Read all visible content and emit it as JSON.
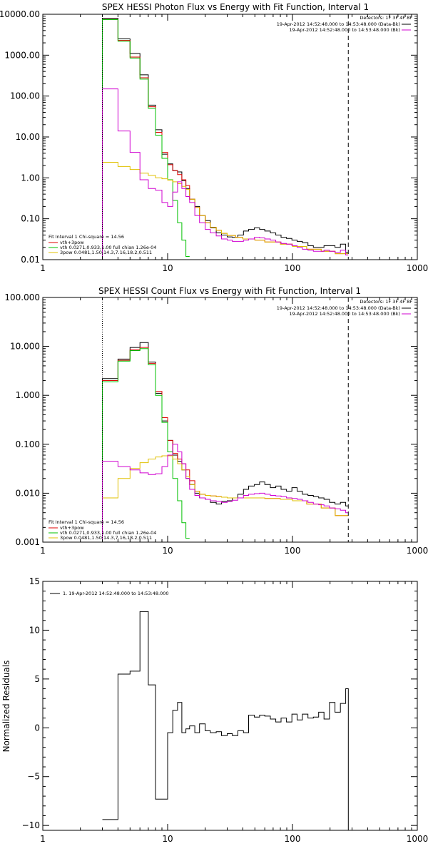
{
  "figure": {
    "background": "#ffffff",
    "axis_color": "#000000"
  },
  "chart_data": [
    {
      "type": "line",
      "title": "SPEX HESSI Photon Flux vs Energy with Fit Function, Interval 1",
      "xscale": "log",
      "yscale": "log",
      "xlim": [
        1,
        1000
      ],
      "ylim": [
        0.01,
        10000
      ],
      "xticks": [
        1,
        10,
        100,
        1000
      ],
      "xticklabels": [
        "1",
        "10",
        "100",
        "1000"
      ],
      "yticks": [
        0.01,
        0.1,
        1,
        10,
        100,
        1000,
        10000
      ],
      "yticklabels": [
        "0.01",
        "0.10",
        "1.00",
        "10.00",
        "100.00",
        "1000.00",
        "10000.00"
      ],
      "vlines": [
        {
          "x": 3.0,
          "style": "dotted",
          "color": "#000000"
        },
        {
          "x": 280,
          "style": "dashed",
          "color": "#000000"
        }
      ],
      "header_labels": [
        {
          "text": "Detectors: 1F 3F 4F 8F",
          "color": ""
        },
        {
          "text": "19-Apr-2012 14:52:48.000 to 14:53:48.000 (Data-Bk)",
          "color": "#000000"
        },
        {
          "text": "19-Apr-2012 14:52:48.000 to 14:53:48.000 (Bk)",
          "color": "#d000d0"
        }
      ],
      "legend_labels": [
        {
          "text": "Fit Interval  1    Chi-square = 14.56",
          "color": ""
        },
        {
          "text": "vth+3pow",
          "color": "#e00000"
        },
        {
          "text": "vth 0.0271,0.933,1.00  full chian 1.26e-04",
          "color": "#00c000"
        },
        {
          "text": "3pow 0.0481,1.50,14.3,7.16,18.2,0.511",
          "color": "#e0c000"
        }
      ],
      "series": [
        {
          "key": "data_bk",
          "color": "#000000",
          "edges": [
            3.0,
            4.0,
            5.0,
            6.0,
            7.0,
            8.0,
            9.0,
            10.0,
            11.0,
            12.0,
            13.0,
            14.0,
            15.0,
            16.5,
            18.0,
            20.0,
            22.0,
            24.5,
            27.0,
            30.0,
            33.0,
            36.5,
            40.5,
            44.5,
            49.5,
            54.5,
            60.0,
            66.5,
            73.5,
            81.0,
            89.5,
            99.0,
            109.0,
            120.0,
            133.0,
            147.0,
            162.0,
            179.0,
            198.0,
            219.0,
            242.0,
            267.0,
            280.0
          ],
          "values": [
            8000,
            2500,
            1100,
            330,
            60,
            15,
            3.8,
            2.2,
            1.5,
            1.4,
            0.85,
            0.55,
            0.3,
            0.2,
            0.12,
            0.09,
            0.06,
            0.045,
            0.04,
            0.036,
            0.035,
            0.04,
            0.05,
            0.055,
            0.06,
            0.055,
            0.05,
            0.045,
            0.04,
            0.035,
            0.033,
            0.03,
            0.028,
            0.026,
            0.022,
            0.02,
            0.02,
            0.022,
            0.022,
            0.02,
            0.024,
            0.015
          ]
        },
        {
          "key": "total_fit",
          "color": "#e00000",
          "edges": [
            3.0,
            4.0,
            5.0,
            6.0,
            7.0,
            8.0,
            9.0,
            10.0,
            11.0,
            12.0,
            13.0,
            14.0,
            15.0,
            16.5,
            18.0,
            20.0,
            22.0,
            24.5,
            27.0,
            30.0,
            35.0,
            40.0,
            50.0,
            60.0,
            80.0,
            100.0,
            130.0,
            170.0,
            220.0,
            280.0
          ],
          "values": [
            7500,
            2300,
            900,
            280,
            55,
            13,
            4.2,
            2.1,
            1.5,
            1.2,
            0.9,
            0.65,
            0.3,
            0.19,
            0.12,
            0.08,
            0.062,
            0.052,
            0.044,
            0.039,
            0.035,
            0.032,
            0.03,
            0.027,
            0.024,
            0.021,
            0.018,
            0.016,
            0.014
          ]
        },
        {
          "key": "vth",
          "color": "#00c000",
          "edges": [
            3.0,
            4.0,
            5.0,
            6.0,
            7.0,
            8.0,
            9.0,
            10.0,
            11.0,
            12.0,
            13.0,
            14.0,
            15.0
          ],
          "values": [
            7400,
            2200,
            850,
            260,
            50,
            11,
            3.0,
            0.9,
            0.28,
            0.08,
            0.03,
            0.012
          ]
        },
        {
          "key": "pow3",
          "color": "#e0c000",
          "edges": [
            3.0,
            4.0,
            5.0,
            6.0,
            7.0,
            8.0,
            9.0,
            10.0,
            11.0,
            12.0,
            13.0,
            14.0,
            15.0,
            16.5,
            18.0,
            20.0,
            22.0,
            24.5,
            27.0,
            30.0,
            35.0,
            40.0,
            50.0,
            60.0,
            80.0,
            100.0,
            130.0,
            170.0,
            220.0,
            280.0
          ],
          "values": [
            2.4,
            1.9,
            1.6,
            1.3,
            1.15,
            1.0,
            0.95,
            0.88,
            0.8,
            0.72,
            0.62,
            0.52,
            0.3,
            0.19,
            0.12,
            0.08,
            0.062,
            0.052,
            0.044,
            0.039,
            0.035,
            0.032,
            0.03,
            0.027,
            0.024,
            0.021,
            0.018,
            0.016,
            0.014
          ]
        },
        {
          "key": "bk",
          "color": "#d000d0",
          "edges": [
            3.0,
            4.0,
            5.0,
            6.0,
            7.0,
            8.0,
            9.0,
            10.0,
            11.0,
            12.0,
            13.0,
            14.0,
            15.0,
            16.5,
            18.0,
            20.0,
            22.0,
            24.5,
            27.0,
            30.0,
            33.0,
            36.5,
            40.5,
            44.5,
            49.5,
            54.5,
            60.0,
            66.5,
            73.5,
            81.0,
            89.5,
            99.0,
            109.0,
            120.0,
            133.0,
            147.0,
            162.0,
            179.0,
            198.0,
            219.0,
            242.0,
            267.0,
            280.0
          ],
          "values": [
            150,
            14,
            4.2,
            0.9,
            0.55,
            0.5,
            0.25,
            0.2,
            0.45,
            0.8,
            0.55,
            0.35,
            0.25,
            0.12,
            0.08,
            0.055,
            0.045,
            0.038,
            0.032,
            0.03,
            0.028,
            0.028,
            0.03,
            0.032,
            0.035,
            0.034,
            0.032,
            0.03,
            0.027,
            0.025,
            0.024,
            0.022,
            0.02,
            0.018,
            0.017,
            0.016,
            0.016,
            0.017,
            0.016,
            0.015,
            0.017,
            0.013
          ]
        }
      ]
    },
    {
      "type": "line",
      "title": "SPEX HESSI Count Flux vs Energy with Fit Function, Interval 1",
      "xscale": "log",
      "yscale": "log",
      "xlim": [
        1,
        1000
      ],
      "ylim": [
        0.001,
        100
      ],
      "xticks": [
        1,
        10,
        100,
        1000
      ],
      "xticklabels": [
        "1",
        "10",
        "100",
        "1000"
      ],
      "yticks": [
        0.001,
        0.01,
        0.1,
        1,
        10,
        100
      ],
      "yticklabels": [
        "0.001",
        "0.010",
        "0.100",
        "1.000",
        "10.000",
        "100.000"
      ],
      "vlines": [
        {
          "x": 3.0,
          "style": "dotted",
          "color": "#000000"
        },
        {
          "x": 280,
          "style": "dashed",
          "color": "#000000"
        }
      ],
      "header_labels": [
        {
          "text": "Detectors: 1F 3F 4F 8F",
          "color": ""
        },
        {
          "text": "19-Apr-2012 14:52:48.000 to 14:53:48.000 (Data-Bk)",
          "color": "#000000"
        },
        {
          "text": "19-Apr-2012 14:52:48.000 to 14:53:48.000 (Bk)",
          "color": "#d000d0"
        }
      ],
      "legend_labels": [
        {
          "text": "Fit Interval  1    Chi-square = 14.56",
          "color": ""
        },
        {
          "text": "vth+3pow",
          "color": "#e00000"
        },
        {
          "text": "vth 0.0271,0.933,1.00  full chian 1.26e-04",
          "color": "#00c000"
        },
        {
          "text": "3pow 0.0481,1.50,14.3,7.16,18.2,0.511",
          "color": "#e0c000"
        }
      ],
      "series": [
        {
          "key": "data_bk",
          "color": "#000000",
          "edges": [
            3.0,
            4.0,
            5.0,
            6.0,
            7.0,
            8.0,
            9.0,
            10.0,
            11.0,
            12.0,
            13.0,
            14.0,
            15.0,
            16.5,
            18.0,
            20.0,
            22.0,
            24.5,
            27.0,
            30.0,
            33.0,
            36.5,
            40.5,
            44.5,
            49.5,
            54.5,
            60.0,
            66.5,
            73.5,
            81.0,
            89.5,
            99.0,
            109.0,
            120.0,
            133.0,
            147.0,
            162.0,
            179.0,
            198.0,
            219.0,
            242.0,
            267.0,
            280.0
          ],
          "values": [
            2.2,
            5.5,
            9.5,
            12,
            4.8,
            1.1,
            0.3,
            0.12,
            0.06,
            0.045,
            0.03,
            0.02,
            0.015,
            0.01,
            0.008,
            0.0075,
            0.0065,
            0.006,
            0.0068,
            0.007,
            0.008,
            0.0095,
            0.012,
            0.014,
            0.015,
            0.017,
            0.015,
            0.013,
            0.014,
            0.012,
            0.011,
            0.013,
            0.011,
            0.0095,
            0.009,
            0.0085,
            0.008,
            0.0075,
            0.0065,
            0.006,
            0.0065,
            0.0055
          ]
        },
        {
          "key": "total_fit",
          "color": "#e00000",
          "edges": [
            3.0,
            4.0,
            5.0,
            6.0,
            7.0,
            8.0,
            9.0,
            10.0,
            11.0,
            12.0,
            13.0,
            14.0,
            15.0,
            16.5,
            18.0,
            20.0,
            22.0,
            24.5,
            27.0,
            30.0,
            35.0,
            40.0,
            50.0,
            60.0,
            80.0,
            100.0,
            130.0,
            170.0,
            220.0,
            280.0
          ],
          "values": [
            2.0,
            5.2,
            8.5,
            9.5,
            4.5,
            1.2,
            0.35,
            0.12,
            0.065,
            0.05,
            0.04,
            0.03,
            0.018,
            0.011,
            0.0095,
            0.009,
            0.0088,
            0.0085,
            0.0083,
            0.008,
            0.008,
            0.008,
            0.008,
            0.0078,
            0.0075,
            0.007,
            0.006,
            0.005,
            0.0035
          ]
        },
        {
          "key": "vth",
          "color": "#00c000",
          "edges": [
            3.0,
            4.0,
            5.0,
            6.0,
            7.0,
            8.0,
            9.0,
            10.0,
            11.0,
            12.0,
            13.0,
            14.0,
            15.0
          ],
          "values": [
            1.9,
            5.0,
            8.2,
            9.0,
            4.2,
            1.0,
            0.28,
            0.07,
            0.02,
            0.007,
            0.0025,
            0.0012
          ]
        },
        {
          "key": "pow3",
          "color": "#e0c000",
          "edges": [
            3.0,
            4.0,
            5.0,
            6.0,
            7.0,
            8.0,
            9.0,
            10.0,
            11.0,
            12.0,
            13.0,
            14.0,
            15.0,
            16.5,
            18.0,
            20.0,
            22.0,
            24.5,
            27.0,
            30.0,
            35.0,
            40.0,
            50.0,
            60.0,
            80.0,
            100.0,
            130.0,
            170.0,
            220.0,
            280.0
          ],
          "values": [
            0.008,
            0.02,
            0.032,
            0.042,
            0.05,
            0.055,
            0.058,
            0.058,
            0.05,
            0.04,
            0.03,
            0.022,
            0.015,
            0.011,
            0.0095,
            0.009,
            0.0088,
            0.0085,
            0.0083,
            0.008,
            0.008,
            0.008,
            0.008,
            0.0078,
            0.0075,
            0.007,
            0.006,
            0.005,
            0.0035
          ]
        },
        {
          "key": "bk",
          "color": "#d000d0",
          "edges": [
            3.0,
            4.0,
            5.0,
            6.0,
            7.0,
            8.0,
            9.0,
            10.0,
            11.0,
            12.0,
            13.0,
            14.0,
            15.0,
            16.5,
            18.0,
            20.0,
            22.0,
            24.5,
            27.0,
            30.0,
            33.0,
            36.5,
            40.5,
            44.5,
            49.5,
            54.5,
            60.0,
            66.5,
            73.5,
            81.0,
            89.5,
            99.0,
            109.0,
            120.0,
            133.0,
            147.0,
            162.0,
            179.0,
            198.0,
            219.0,
            242.0,
            267.0,
            280.0
          ],
          "values": [
            0.045,
            0.035,
            0.03,
            0.026,
            0.024,
            0.025,
            0.035,
            0.06,
            0.1,
            0.07,
            0.04,
            0.02,
            0.012,
            0.009,
            0.008,
            0.0075,
            0.007,
            0.0068,
            0.0065,
            0.0068,
            0.0072,
            0.008,
            0.009,
            0.0095,
            0.0098,
            0.01,
            0.0095,
            0.009,
            0.0088,
            0.0085,
            0.008,
            0.0078,
            0.0075,
            0.007,
            0.0065,
            0.006,
            0.0058,
            0.0055,
            0.005,
            0.0048,
            0.0045,
            0.004
          ]
        }
      ]
    },
    {
      "type": "line",
      "title": "",
      "ylabel": "Normalized Residuals",
      "xscale": "log",
      "yscale": "linear",
      "xlim": [
        1,
        1000
      ],
      "ylim": [
        -10.5,
        15
      ],
      "xticks": [
        1,
        10,
        100,
        1000
      ],
      "xticklabels": [
        "1",
        "10",
        "100",
        "1000"
      ],
      "yticks": [
        -10,
        -5,
        0,
        5,
        10,
        15
      ],
      "yticklabels": [
        "−10",
        "−5",
        "0",
        "5",
        "10",
        "15"
      ],
      "vlines": [],
      "header_labels": [],
      "legend_labels": [
        {
          "text": "1. 19-Apr-2012 14:52:48.000 to 14:53:48.000",
          "color": "#000000"
        }
      ],
      "series": [
        {
          "key": "resid",
          "color": "#000000",
          "edges": [
            3.0,
            4.0,
            5.0,
            6.0,
            7.0,
            8.0,
            9.0,
            10.0,
            11.0,
            12.0,
            13.0,
            14.0,
            15.0,
            16.5,
            18.0,
            20.0,
            22.0,
            24.5,
            27.0,
            30.0,
            33.0,
            36.5,
            40.5,
            44.5,
            49.5,
            54.5,
            60.0,
            66.5,
            73.5,
            81.0,
            89.5,
            99.0,
            109.0,
            120.0,
            133.0,
            147.0,
            162.0,
            179.0,
            198.0,
            219.0,
            242.0,
            267.0,
            280.0
          ],
          "values": [
            -9.4,
            5.5,
            5.8,
            11.9,
            4.4,
            -7.3,
            -7.3,
            -0.5,
            1.8,
            2.6,
            -0.5,
            -0.1,
            0.2,
            -0.5,
            0.4,
            -0.3,
            -0.5,
            -0.4,
            -0.8,
            -0.6,
            -0.8,
            -0.3,
            -0.5,
            1.3,
            1.1,
            1.3,
            1.2,
            0.9,
            0.6,
            1.0,
            0.6,
            1.4,
            0.8,
            1.4,
            1.0,
            1.1,
            1.6,
            0.9,
            2.6,
            1.6,
            2.5,
            4.0
          ],
          "drop_to": -10.5
        }
      ]
    }
  ]
}
